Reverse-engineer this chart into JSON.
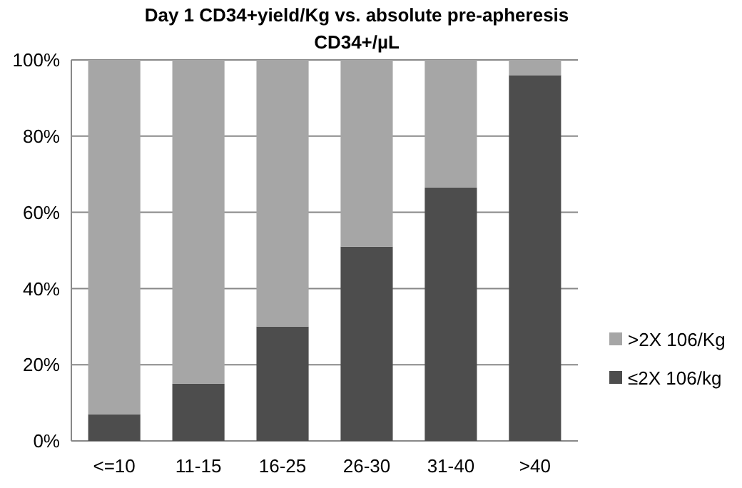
{
  "chart_data": {
    "type": "bar",
    "title": "Day 1 CD34+yield/Kg vs. absolute pre-apheresis CD34+/µL",
    "categories": [
      "<=10",
      "11-15",
      "16-25",
      "26-30",
      "31-40",
      ">40"
    ],
    "stacked": true,
    "series": [
      {
        "name": "≤2X 106/kg",
        "color": "#4d4d4d",
        "values": [
          7,
          15,
          30,
          51,
          66.5,
          96
        ]
      },
      {
        "name": ">2X 106/Kg",
        "color": "#a6a6a6",
        "values": [
          93,
          85,
          70,
          49,
          33.5,
          4
        ]
      }
    ],
    "ylim": [
      0,
      100
    ],
    "yticks": [
      {
        "value": 0,
        "label": "0%"
      },
      {
        "value": 20,
        "label": "20%"
      },
      {
        "value": 40,
        "label": "40%"
      },
      {
        "value": 60,
        "label": "60%"
      },
      {
        "value": 80,
        "label": "80%"
      },
      {
        "value": 100,
        "label": "100%"
      }
    ],
    "grid": "y",
    "legend": "right"
  }
}
